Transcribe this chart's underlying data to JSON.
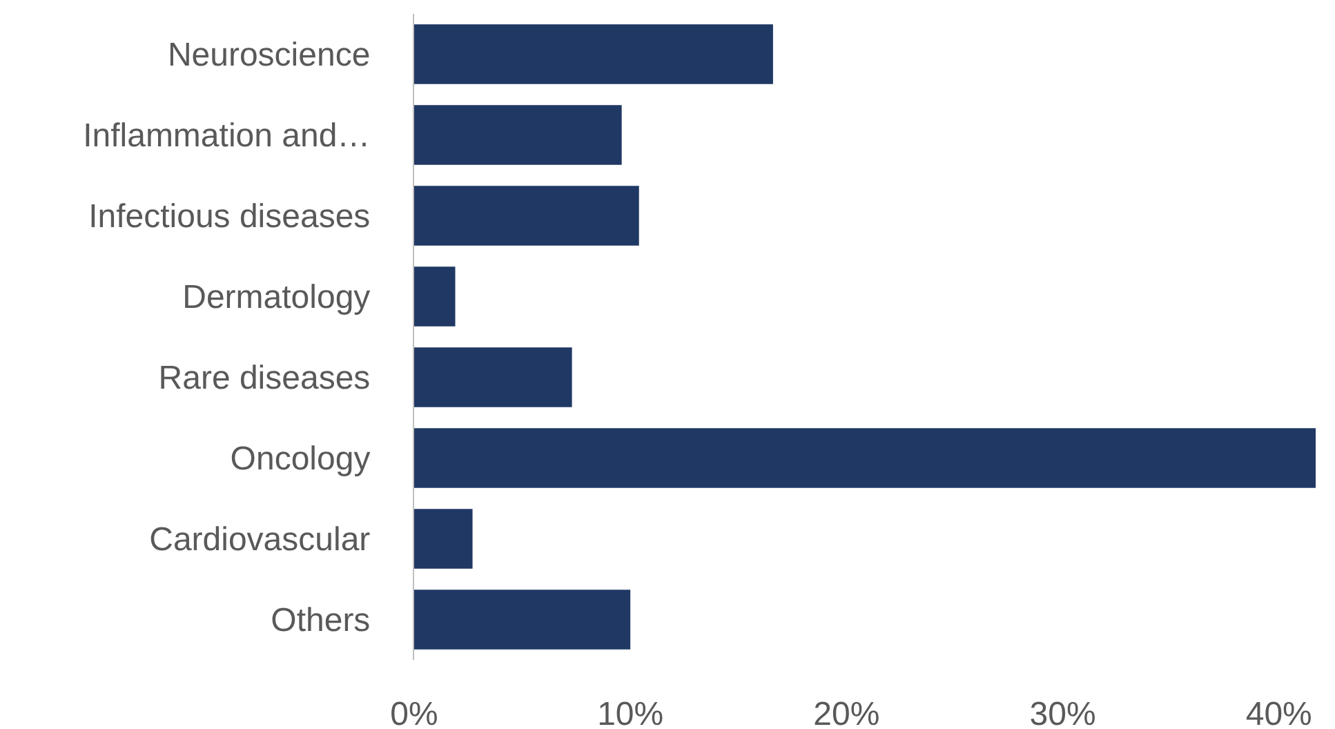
{
  "chart_data": {
    "type": "bar",
    "orientation": "horizontal",
    "categories": [
      "Neuroscience",
      "Inflammation and…",
      "Infectious diseases",
      "Dermatology",
      "Rare diseases",
      "Oncology",
      "Cardiovascular",
      "Others"
    ],
    "values": [
      16.6,
      9.6,
      10.4,
      1.9,
      7.3,
      41.7,
      2.7,
      10.0
    ],
    "color": "#203864",
    "xlim": [
      0,
      41.7
    ],
    "xticks": [
      {
        "value": 0,
        "label": "0%"
      },
      {
        "value": 10,
        "label": "10%"
      },
      {
        "value": 20,
        "label": "20%"
      },
      {
        "value": 30,
        "label": "30%"
      },
      {
        "value": 40,
        "label": "40%"
      }
    ],
    "grid": false
  }
}
